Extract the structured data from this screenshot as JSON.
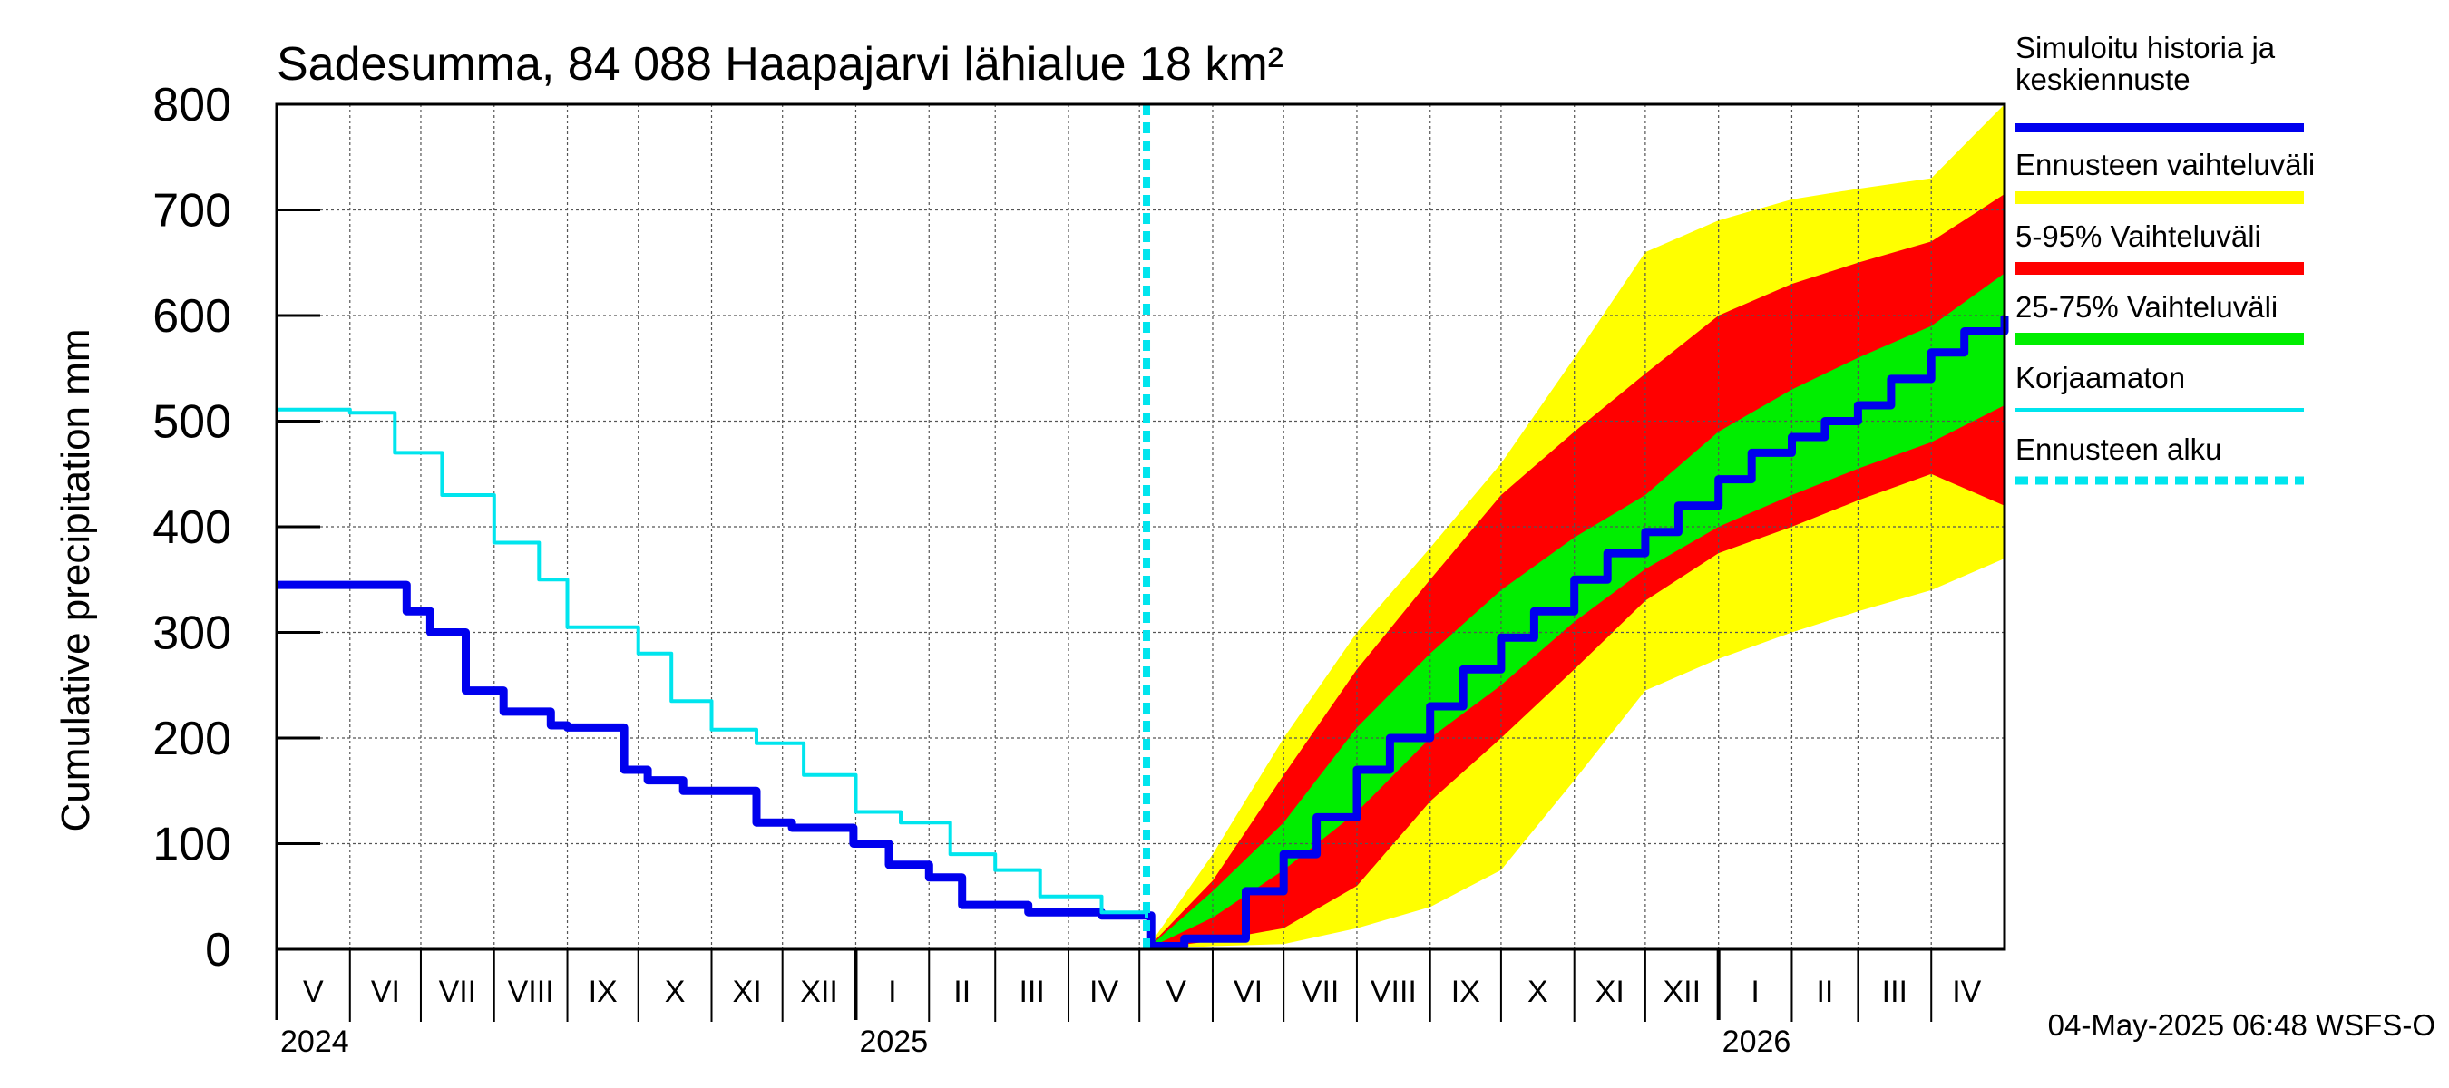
{
  "chart_data": {
    "type": "area",
    "title": "Sadesumma, 84 088 Haapajarvi lähialue 18 km²",
    "ylabel": "Cumulative precipitation   mm",
    "ylim": [
      0,
      800
    ],
    "yticks": [
      "0",
      "100",
      "200",
      "300",
      "400",
      "500",
      "600",
      "700",
      "800"
    ],
    "x_start": "2024-05-01",
    "x_end": "2026-05-02",
    "forecast_start": "2025-05-04",
    "grid": true,
    "legend_position": "right",
    "month_labels": [
      "V",
      "VI",
      "VII",
      "VIII",
      "IX",
      "X",
      "XI",
      "XII",
      "I",
      "II",
      "III",
      "IV",
      "V",
      "VI",
      "VII",
      "VIII",
      "IX",
      "X",
      "XI",
      "XII",
      "I",
      "II",
      "III",
      "IV"
    ],
    "year_labels": [
      "2024",
      "2025",
      "2026"
    ],
    "series": [
      {
        "name": "Simuloitu historia ja keskiennuste",
        "color": "#0000ee",
        "x": [
          "2024-05-01",
          "2024-06-10",
          "2024-06-25",
          "2024-07-05",
          "2024-07-20",
          "2024-08-05",
          "2024-08-25",
          "2024-09-01",
          "2024-09-25",
          "2024-10-05",
          "2024-10-20",
          "2024-11-20",
          "2024-12-05",
          "2024-12-31",
          "2025-01-15",
          "2025-02-01",
          "2025-02-15",
          "2025-03-15",
          "2025-04-15",
          "2025-05-04",
          "2025-05-06",
          "2025-05-20",
          "2025-06-15",
          "2025-07-01",
          "2025-07-15",
          "2025-08-01",
          "2025-08-15",
          "2025-09-01",
          "2025-09-15",
          "2025-10-01",
          "2025-10-15",
          "2025-11-01",
          "2025-11-15",
          "2025-12-01",
          "2025-12-15",
          "2026-01-01",
          "2026-01-15",
          "2026-02-01",
          "2026-02-15",
          "2026-03-01",
          "2026-03-15",
          "2026-04-01",
          "2026-04-15",
          "2026-05-02"
        ],
        "values": [
          345,
          345,
          320,
          300,
          245,
          225,
          212,
          210,
          170,
          160,
          150,
          120,
          115,
          100,
          80,
          68,
          42,
          35,
          32,
          32,
          3,
          10,
          55,
          90,
          125,
          170,
          200,
          230,
          265,
          295,
          320,
          350,
          375,
          395,
          420,
          445,
          470,
          485,
          500,
          515,
          540,
          565,
          585,
          600
        ]
      },
      {
        "name": "Korjaamaton",
        "color": "#00e5ee",
        "x": [
          "2024-05-01",
          "2024-06-01",
          "2024-06-20",
          "2024-07-10",
          "2024-08-01",
          "2024-08-20",
          "2024-09-01",
          "2024-10-01",
          "2024-10-15",
          "2024-11-01",
          "2024-11-20",
          "2024-12-10",
          "2025-01-01",
          "2025-01-20",
          "2025-02-10",
          "2025-03-01",
          "2025-03-20",
          "2025-04-15",
          "2025-05-04"
        ],
        "values": [
          511,
          508,
          470,
          430,
          385,
          350,
          305,
          280,
          235,
          208,
          195,
          165,
          130,
          120,
          90,
          75,
          50,
          35,
          30
        ]
      },
      {
        "name": "Ennusteen vaihteluväli",
        "color": "#ffff00",
        "x": [
          "2025-05-04",
          "2025-06-01",
          "2025-07-01",
          "2025-08-01",
          "2025-09-01",
          "2025-10-01",
          "2025-11-01",
          "2025-12-01",
          "2026-01-01",
          "2026-02-01",
          "2026-03-01",
          "2026-04-01",
          "2026-05-02"
        ],
        "lower": [
          0,
          3,
          5,
          20,
          40,
          75,
          160,
          245,
          275,
          300,
          320,
          340,
          370
        ],
        "upper": [
          0,
          90,
          200,
          300,
          380,
          460,
          560,
          660,
          690,
          710,
          720,
          730,
          800
        ]
      },
      {
        "name": "5-95% Vaihteluväli",
        "color": "#ff0000",
        "x": [
          "2025-05-04",
          "2025-06-01",
          "2025-07-01",
          "2025-08-01",
          "2025-09-01",
          "2025-10-01",
          "2025-11-01",
          "2025-12-01",
          "2026-01-01",
          "2026-02-01",
          "2026-03-01",
          "2026-04-01",
          "2026-05-02"
        ],
        "lower": [
          0,
          8,
          20,
          60,
          140,
          200,
          265,
          330,
          375,
          400,
          425,
          450,
          420
        ],
        "upper": [
          0,
          65,
          165,
          265,
          350,
          430,
          490,
          545,
          600,
          630,
          650,
          670,
          715
        ]
      },
      {
        "name": "25-75% Vaihteluväli",
        "color": "#00ee00",
        "x": [
          "2025-05-04",
          "2025-06-01",
          "2025-07-01",
          "2025-08-01",
          "2025-09-01",
          "2025-10-01",
          "2025-11-01",
          "2025-12-01",
          "2026-01-01",
          "2026-02-01",
          "2026-03-01",
          "2026-04-01",
          "2026-05-02"
        ],
        "lower": [
          0,
          30,
          75,
          130,
          200,
          250,
          310,
          360,
          400,
          430,
          455,
          480,
          515
        ],
        "upper": [
          0,
          55,
          120,
          210,
          280,
          340,
          390,
          430,
          490,
          530,
          560,
          590,
          640
        ]
      },
      {
        "name": "Ennusteen alku",
        "color": "#00e5ee"
      }
    ]
  },
  "footer": {
    "timestamp": "04-May-2025 06:48 WSFS-O"
  }
}
